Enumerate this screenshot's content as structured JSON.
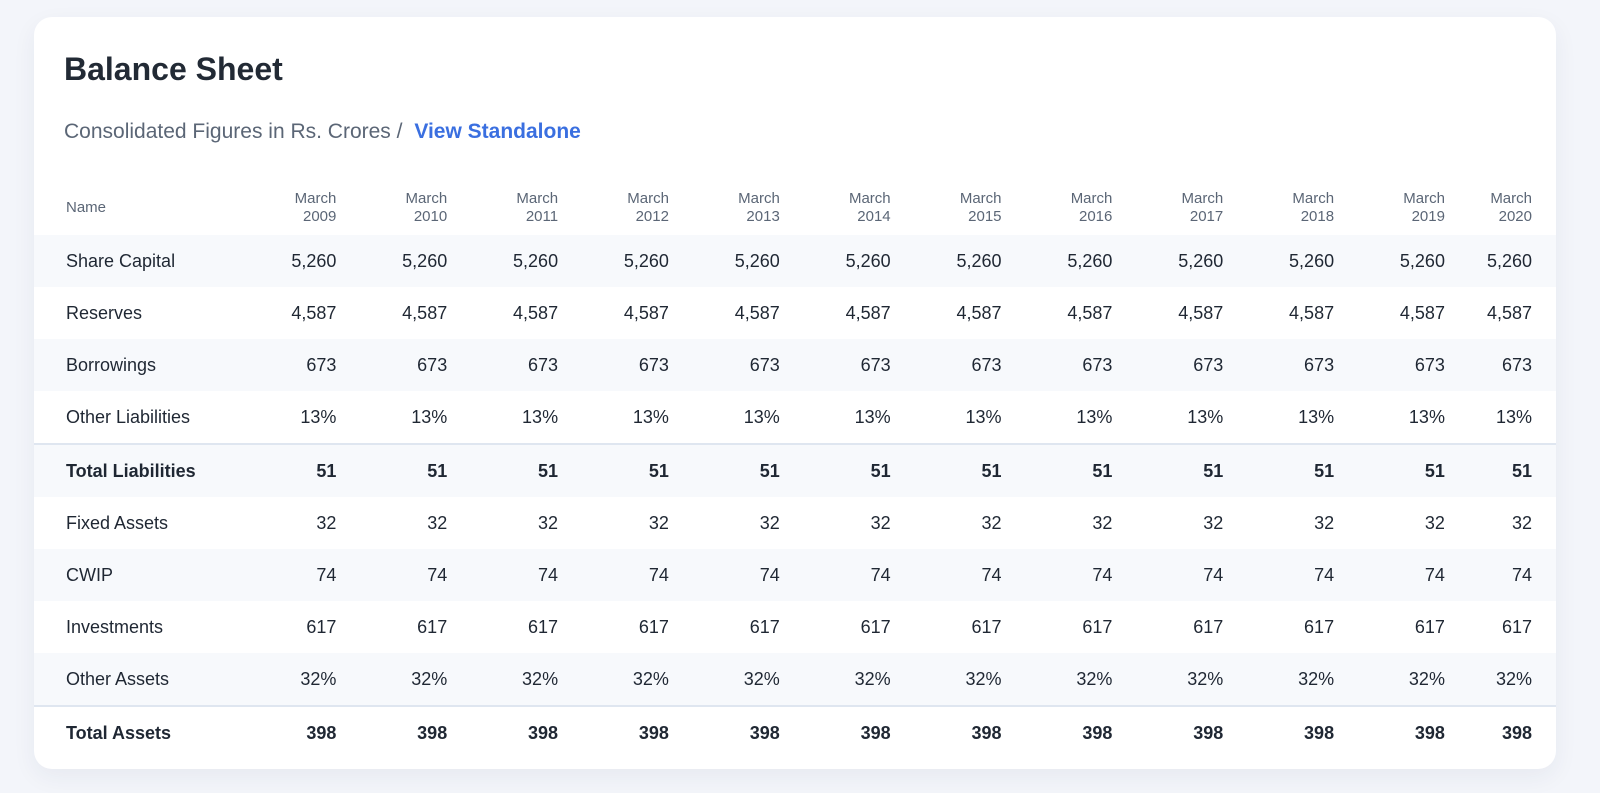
{
  "header": {
    "title": "Balance Sheet",
    "subtitle": "Consolidated Figures in Rs. Crores /",
    "link": "View Standalone"
  },
  "table": {
    "name_header": "Name",
    "columns": [
      {
        "month": "March",
        "year": "2009"
      },
      {
        "month": "March",
        "year": "2010"
      },
      {
        "month": "March",
        "year": "2011"
      },
      {
        "month": "March",
        "year": "2012"
      },
      {
        "month": "March",
        "year": "2013"
      },
      {
        "month": "March",
        "year": "2014"
      },
      {
        "month": "March",
        "year": "2015"
      },
      {
        "month": "March",
        "year": "2016"
      },
      {
        "month": "March",
        "year": "2017"
      },
      {
        "month": "March",
        "year": "2018"
      },
      {
        "month": "March",
        "year": "2019"
      },
      {
        "month": "March",
        "year": "2020"
      }
    ],
    "rows": [
      {
        "name": "Share Capital",
        "values": [
          "5,260",
          "5,260",
          "5,260",
          "5,260",
          "5,260",
          "5,260",
          "5,260",
          "5,260",
          "5,260",
          "5,260",
          "5,260",
          "5,260"
        ]
      },
      {
        "name": "Reserves",
        "values": [
          "4,587",
          "4,587",
          "4,587",
          "4,587",
          "4,587",
          "4,587",
          "4,587",
          "4,587",
          "4,587",
          "4,587",
          "4,587",
          "4,587"
        ]
      },
      {
        "name": "Borrowings",
        "values": [
          "673",
          "673",
          "673",
          "673",
          "673",
          "673",
          "673",
          "673",
          "673",
          "673",
          "673",
          "673"
        ]
      },
      {
        "name": "Other Liabilities",
        "values": [
          "13%",
          "13%",
          "13%",
          "13%",
          "13%",
          "13%",
          "13%",
          "13%",
          "13%",
          "13%",
          "13%",
          "13%"
        ]
      },
      {
        "name": "Total Liabilities",
        "values": [
          "51",
          "51",
          "51",
          "51",
          "51",
          "51",
          "51",
          "51",
          "51",
          "51",
          "51",
          "51"
        ]
      },
      {
        "name": "Fixed Assets",
        "values": [
          "32",
          "32",
          "32",
          "32",
          "32",
          "32",
          "32",
          "32",
          "32",
          "32",
          "32",
          "32"
        ]
      },
      {
        "name": "CWIP",
        "values": [
          "74",
          "74",
          "74",
          "74",
          "74",
          "74",
          "74",
          "74",
          "74",
          "74",
          "74",
          "74"
        ]
      },
      {
        "name": "Investments",
        "values": [
          "617",
          "617",
          "617",
          "617",
          "617",
          "617",
          "617",
          "617",
          "617",
          "617",
          "617",
          "617"
        ]
      },
      {
        "name": "Other Assets",
        "values": [
          "32%",
          "32%",
          "32%",
          "32%",
          "32%",
          "32%",
          "32%",
          "32%",
          "32%",
          "32%",
          "32%",
          "32%"
        ]
      },
      {
        "name": "Total Assets",
        "values": [
          "398",
          "398",
          "398",
          "398",
          "398",
          "398",
          "398",
          "398",
          "398",
          "398",
          "398",
          "398"
        ]
      }
    ]
  }
}
